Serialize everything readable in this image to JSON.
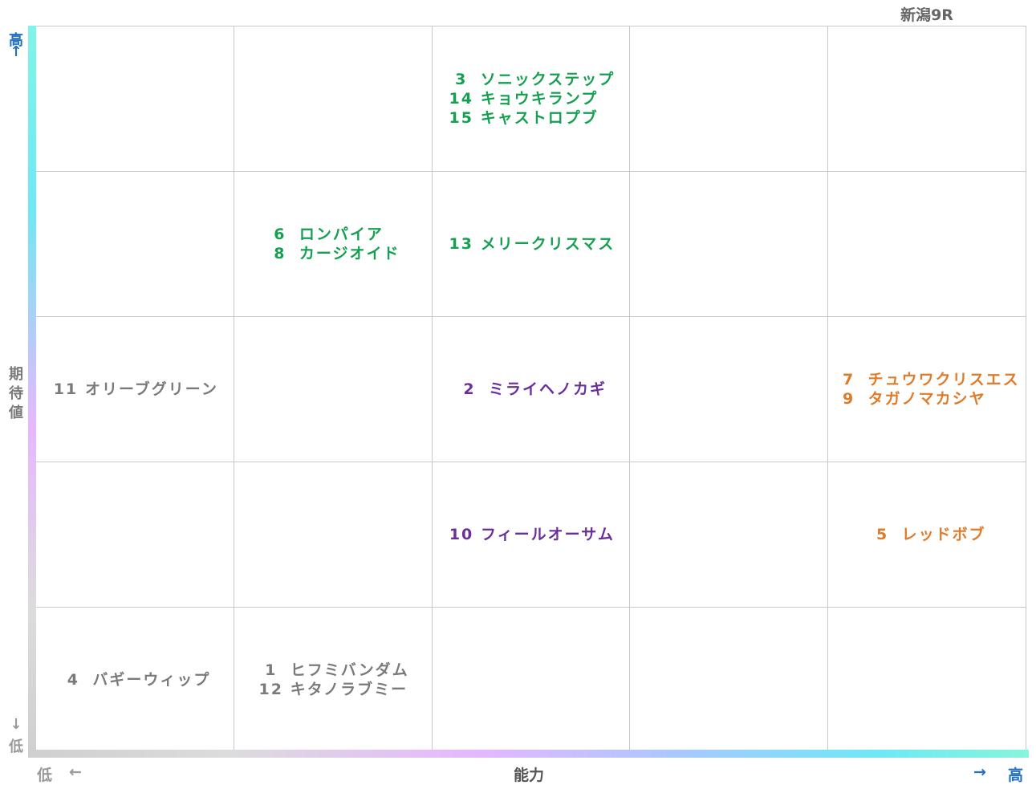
{
  "title": "新潟9R",
  "axes": {
    "y_high": "高",
    "y_high_arrow": "↑",
    "y_label": [
      "期",
      "待",
      "値"
    ],
    "y_low_arrow": "↓",
    "y_low": "低",
    "x_low": "低",
    "x_low_arrow": "←",
    "x_label": "能力",
    "x_high_arrow": "→",
    "x_high": "高"
  },
  "colors": {
    "green": "#14a050",
    "purple": "#6a2f9a",
    "orange": "#e07b2a",
    "gray": "#7a7a7a",
    "axis_label_blue": "#1f6fc4"
  },
  "chart_data": {
    "type": "table",
    "rows": 5,
    "cols": 5,
    "cells": [
      [
        [],
        [],
        [
          {
            "num": "3",
            "name": "ソニックステップ",
            "color": "green"
          },
          {
            "num": "14",
            "name": "キョウキランプ",
            "color": "green"
          },
          {
            "num": "15",
            "name": "キャストロプブ",
            "color": "green"
          }
        ],
        [],
        []
      ],
      [
        [],
        [
          {
            "num": "6",
            "name": "ロンパイア",
            "color": "green"
          },
          {
            "num": "8",
            "name": "カージオイド",
            "color": "green"
          }
        ],
        [
          {
            "num": "13",
            "name": "メリークリスマス",
            "color": "green"
          }
        ],
        [],
        []
      ],
      [
        [
          {
            "num": "11",
            "name": "オリーブグリーン",
            "color": "gray"
          }
        ],
        [],
        [
          {
            "num": "2",
            "name": "ミライヘノカギ",
            "color": "purple"
          }
        ],
        [],
        [
          {
            "num": "7",
            "name": "チュウワクリスエス",
            "color": "orange"
          },
          {
            "num": "9",
            "name": "タガノマカシヤ",
            "color": "orange"
          }
        ]
      ],
      [
        [],
        [],
        [
          {
            "num": "10",
            "name": "フィールオーサム",
            "color": "purple"
          }
        ],
        [],
        [
          {
            "num": "5",
            "name": "レッドボブ",
            "color": "orange"
          }
        ]
      ],
      [
        [
          {
            "num": "4",
            "name": "バギーウィップ",
            "color": "gray"
          }
        ],
        [
          {
            "num": "1",
            "name": "ヒフミバンダム",
            "color": "gray"
          },
          {
            "num": "12",
            "name": "キタノラブミー",
            "color": "gray"
          }
        ],
        [],
        [],
        []
      ]
    ]
  }
}
